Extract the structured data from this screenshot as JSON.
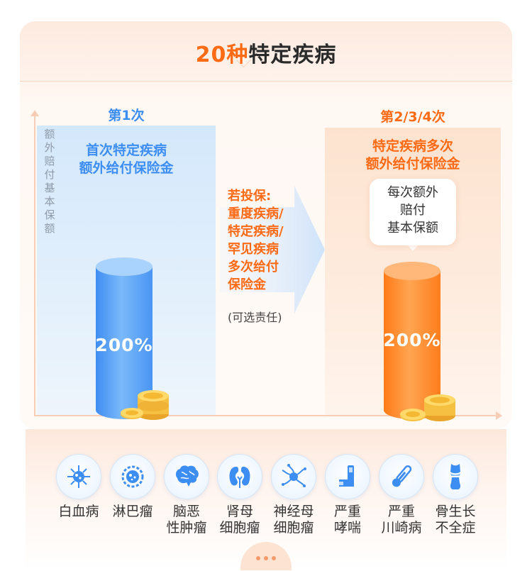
{
  "title": {
    "accent": "20种",
    "main": "特定疾病"
  },
  "axis_label": "额外赔付基本保额",
  "left": {
    "tag": "第1次",
    "desc_line1": "首次特定疾病",
    "desc_line2": "额外给付保险金",
    "percent": "200%",
    "color": "#5aa5f6"
  },
  "middle": {
    "lines": [
      "若投保:",
      "重度疾病/",
      "特定疾病/",
      "罕见疾病",
      "多次给付",
      "保险金"
    ],
    "note": "(可选责任)"
  },
  "right": {
    "tag": "第2/3/4次",
    "desc_line1": "特定疾病多次",
    "desc_line2": "额外给付保险金",
    "bubble": [
      "每次额外",
      "赔付",
      "基本保额"
    ],
    "percent": "200%",
    "color": "#ff8a26"
  },
  "diseases": [
    {
      "icon": "virus-icon",
      "line1": "白血病",
      "line2": ""
    },
    {
      "icon": "lymph-cell-icon",
      "line1": "淋巴瘤",
      "line2": ""
    },
    {
      "icon": "brain-icon",
      "line1": "脑恶",
      "line2": "性肿瘤"
    },
    {
      "icon": "kidney-icon",
      "line1": "肾母",
      "line2": "细胞瘤"
    },
    {
      "icon": "neuron-icon",
      "line1": "神经母",
      "line2": "细胞瘤"
    },
    {
      "icon": "inhaler-icon",
      "line1": "严重",
      "line2": "哮喘"
    },
    {
      "icon": "thermometer-icon",
      "line1": "严重",
      "line2": "川崎病"
    },
    {
      "icon": "bone-icon",
      "line1": "骨生长",
      "line2": "不全症"
    }
  ]
}
